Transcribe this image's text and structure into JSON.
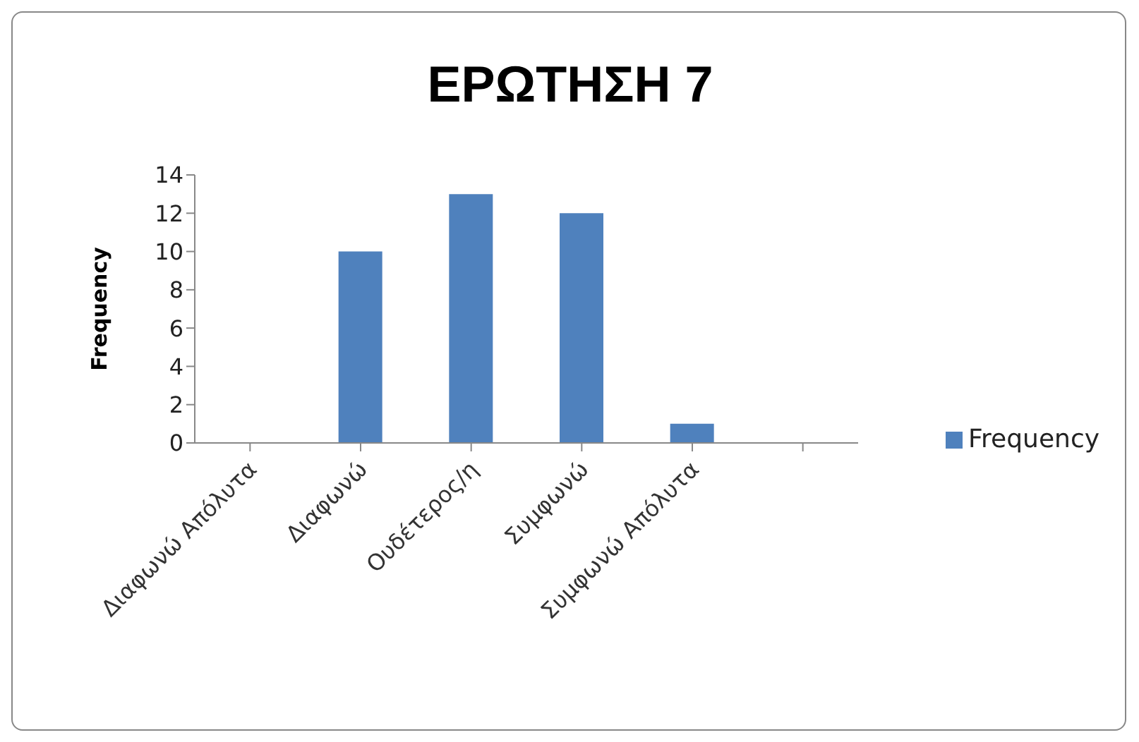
{
  "chart_data": {
    "type": "bar",
    "title": "ΕΡΩΤΗΣΗ 7",
    "ylabel": "Frequency",
    "categories": [
      "Διαφωνώ Απόλυτα",
      "Διαφωνώ",
      "Ουδέτερος/η",
      "Συμφωνώ",
      "Συμφωνώ Απόλυτα",
      null
    ],
    "series": [
      {
        "name": "Frequency",
        "color": "#4f81bd",
        "values": [
          0,
          10,
          13,
          12,
          1,
          null
        ]
      }
    ],
    "ylim": [
      0,
      14
    ],
    "yticks": [
      0,
      2,
      4,
      6,
      8,
      10,
      12,
      14
    ],
    "legend": "right"
  }
}
